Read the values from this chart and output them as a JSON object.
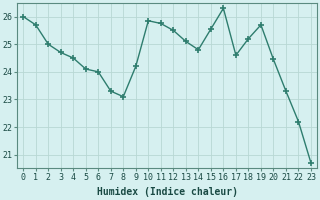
{
  "x": [
    0,
    1,
    2,
    3,
    4,
    5,
    6,
    7,
    8,
    9,
    10,
    11,
    12,
    13,
    14,
    15,
    16,
    17,
    18,
    19,
    20,
    21,
    22,
    23
  ],
  "y": [
    26.0,
    25.7,
    25.0,
    24.7,
    24.5,
    24.1,
    24.0,
    23.3,
    23.1,
    24.2,
    25.85,
    25.75,
    25.5,
    25.1,
    24.8,
    25.55,
    26.3,
    24.6,
    25.2,
    25.7,
    24.45,
    23.3,
    22.2,
    20.7
  ],
  "line_color": "#2e7d6e",
  "marker": "+",
  "marker_size": 5,
  "bg_color": "#d6f0f0",
  "grid_color": "#b8d8d4",
  "xlabel": "Humidex (Indice chaleur)",
  "xlim": [
    -0.5,
    23.5
  ],
  "ylim": [
    20.5,
    26.5
  ],
  "yticks": [
    21,
    22,
    23,
    24,
    25,
    26
  ],
  "xticks": [
    0,
    1,
    2,
    3,
    4,
    5,
    6,
    7,
    8,
    9,
    10,
    11,
    12,
    13,
    14,
    15,
    16,
    17,
    18,
    19,
    20,
    21,
    22,
    23
  ],
  "tick_fontsize": 6,
  "xlabel_fontsize": 7,
  "label_color": "#1a4a44",
  "spine_color": "#5a8a80"
}
